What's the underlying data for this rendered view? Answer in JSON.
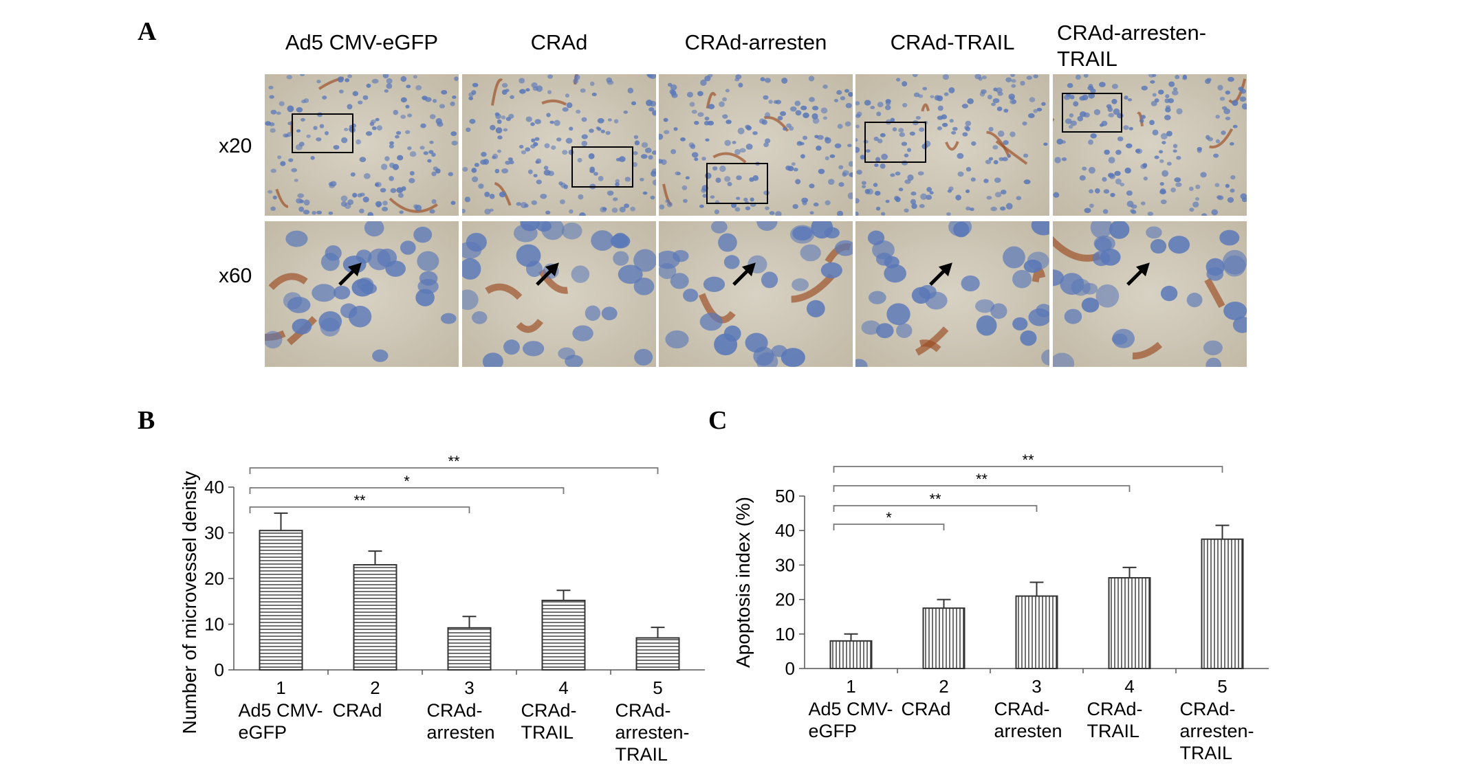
{
  "panel_a": {
    "letter": "A",
    "columns": [
      {
        "title_lines": [
          "Ad5 CMV-eGFP"
        ]
      },
      {
        "title_lines": [
          "CRAd"
        ]
      },
      {
        "title_lines": [
          "CRAd-arresten"
        ]
      },
      {
        "title_lines": [
          "CRAd-TRAIL"
        ]
      },
      {
        "title_lines": [
          "CRAd-arresten-",
          "TRAIL"
        ]
      }
    ],
    "rows": [
      {
        "label": "x20"
      },
      {
        "label": "x60"
      }
    ],
    "colors": {
      "tissue_bg": "#ccc6b8",
      "nucleus": "#5a78b8",
      "stain": "#9a4a20",
      "box": "#000000"
    }
  },
  "chart_data": [
    {
      "panel": "B",
      "type": "bar",
      "categories": [
        "1",
        "2",
        "3",
        "4",
        "5"
      ],
      "category_labels": [
        [
          "Ad5 CMV-",
          "eGFP"
        ],
        [
          "CRAd"
        ],
        [
          "CRAd-",
          "arresten"
        ],
        [
          "CRAd-",
          "TRAIL"
        ],
        [
          "CRAd-",
          "arresten-",
          "TRAIL"
        ]
      ],
      "values": [
        30.5,
        23,
        9.2,
        15.2,
        7
      ],
      "errors": [
        3.8,
        3,
        2.5,
        2.2,
        2.3
      ],
      "ylabel": "Number of microvessel density",
      "ylim": [
        0,
        40
      ],
      "yticks": [
        0,
        10,
        20,
        30,
        40
      ],
      "bar_pattern": "horizontal-lines",
      "significance": [
        {
          "from": 0,
          "to": 2,
          "label": "**"
        },
        {
          "from": 0,
          "to": 3,
          "label": "*"
        },
        {
          "from": 0,
          "to": 4,
          "label": "**"
        }
      ],
      "grid": false
    },
    {
      "panel": "C",
      "type": "bar",
      "categories": [
        "1",
        "2",
        "3",
        "4",
        "5"
      ],
      "category_labels": [
        [
          "Ad5 CMV-",
          "eGFP"
        ],
        [
          "CRAd"
        ],
        [
          "CRAd-",
          "arresten"
        ],
        [
          "CRAd-",
          "TRAIL"
        ],
        [
          "CRAd-",
          "arresten-",
          "TRAIL"
        ]
      ],
      "values": [
        8,
        17.5,
        21,
        26.3,
        37.5
      ],
      "errors": [
        2,
        2.5,
        4,
        3,
        4
      ],
      "ylabel": "Apoptosis index (%)",
      "ylim": [
        0,
        50
      ],
      "yticks": [
        0,
        10,
        20,
        30,
        40,
        50
      ],
      "bar_pattern": "vertical-lines",
      "significance": [
        {
          "from": 0,
          "to": 1,
          "label": "*"
        },
        {
          "from": 0,
          "to": 2,
          "label": "**"
        },
        {
          "from": 0,
          "to": 3,
          "label": "**"
        },
        {
          "from": 0,
          "to": 4,
          "label": "**"
        }
      ],
      "grid": false
    }
  ]
}
